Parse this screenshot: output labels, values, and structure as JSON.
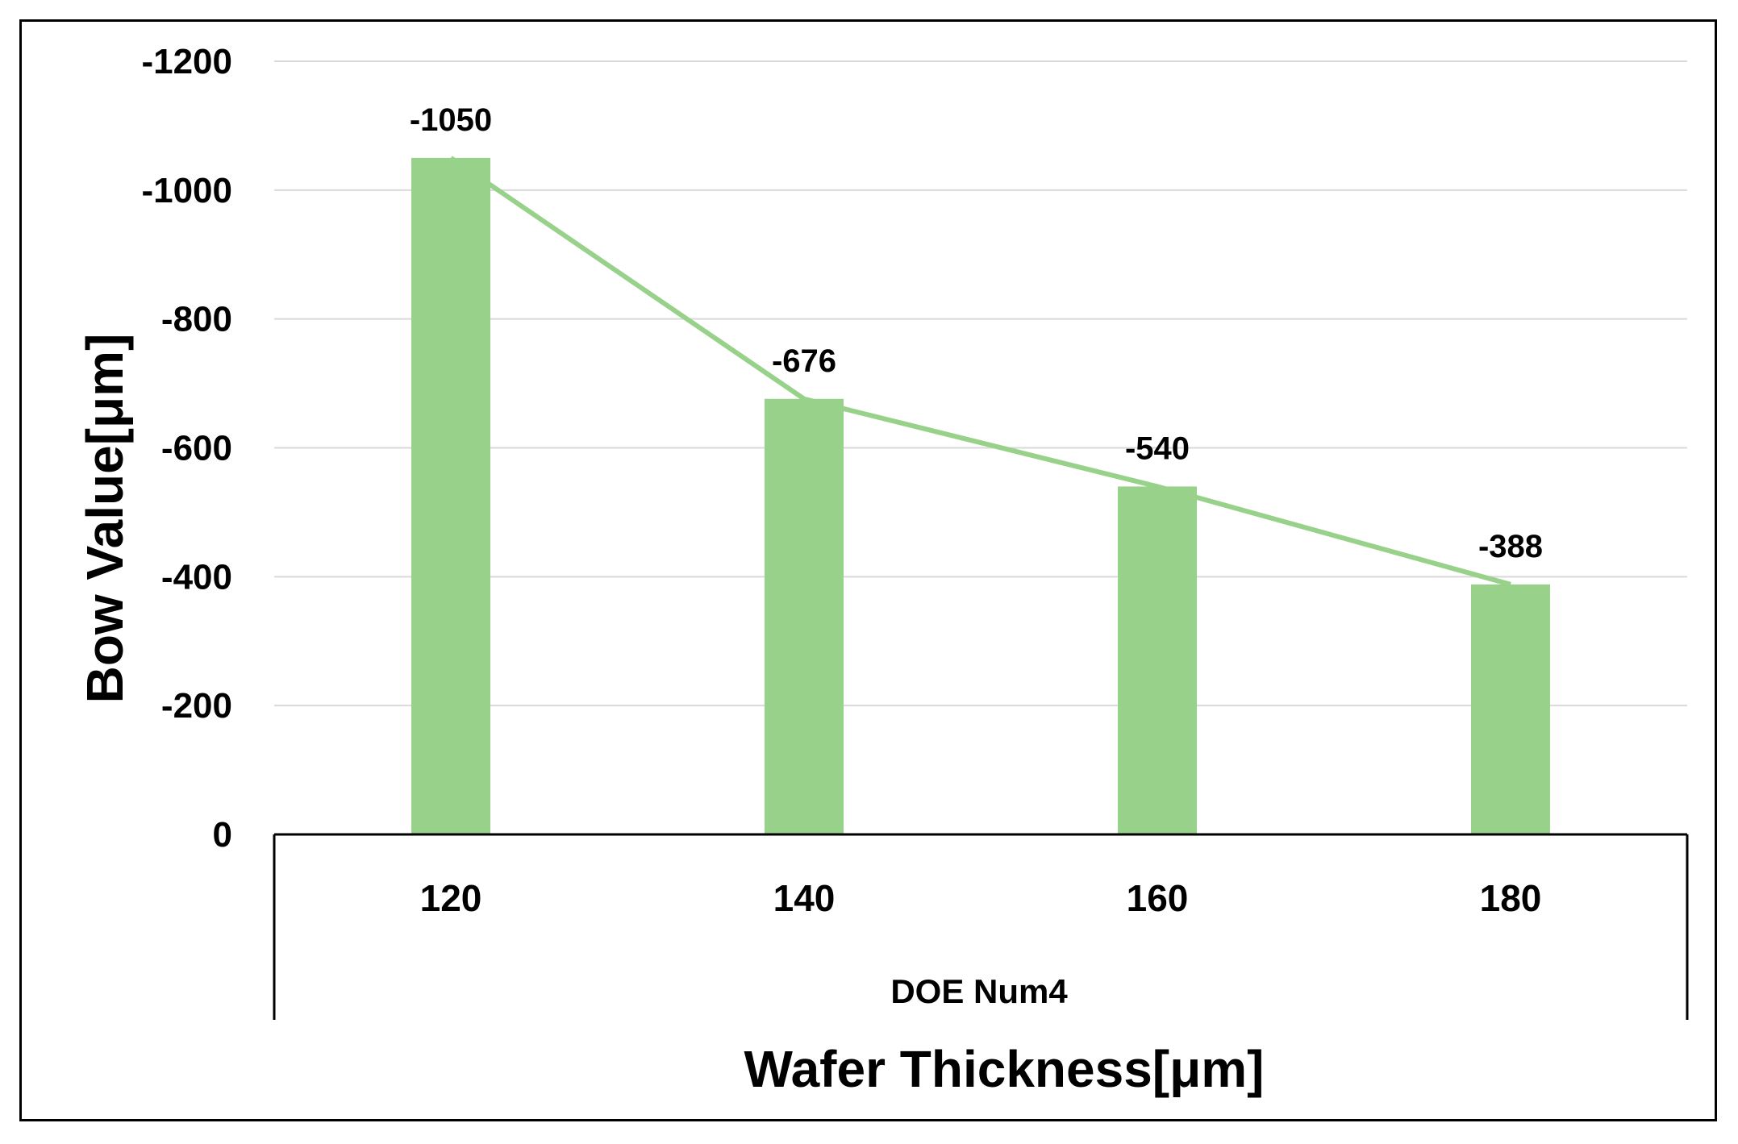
{
  "chart_data": {
    "type": "bar",
    "categories": [
      "120",
      "140",
      "160",
      "180"
    ],
    "group_label": "DOE Num4",
    "series": [
      {
        "values": [
          -1050,
          -676,
          -540,
          -388
        ]
      }
    ],
    "data_labels": [
      "-1050",
      "-676",
      "-540",
      "-388"
    ],
    "overlay_line": true,
    "xlabel": "Wafer Thickness[μm]",
    "ylabel": "Bow Value[μm]",
    "ylim": [
      0,
      -1200
    ],
    "y_axis_inverted": true,
    "yticks": [
      0,
      -200,
      -400,
      -600,
      -800,
      -1000,
      -1200
    ],
    "ytick_labels": [
      "0",
      "-200",
      "-400",
      "-600",
      "-800",
      "-1000",
      "-1200"
    ],
    "grid": true,
    "colors": {
      "bar": "#98d18a",
      "line": "#98d18a",
      "grid": "#d9d9d9",
      "axis": "#000000"
    }
  }
}
